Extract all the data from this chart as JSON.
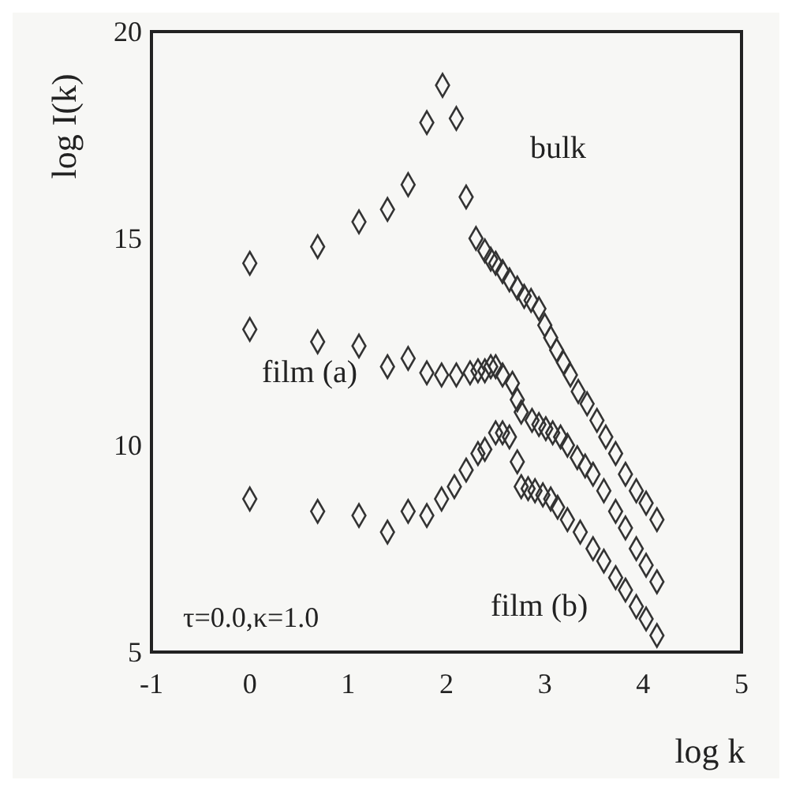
{
  "chart_data": {
    "type": "scatter",
    "xlabel": "log k",
    "ylabel": "log I(k)",
    "xlim": [
      -1,
      5
    ],
    "ylim": [
      5,
      20
    ],
    "xticks": [
      -1,
      0,
      1,
      2,
      3,
      4,
      5
    ],
    "yticks": [
      5,
      10,
      15,
      20
    ],
    "marker": "diamond",
    "grid": false,
    "annotations": [
      "τ=0.0,κ=1.0"
    ],
    "series": [
      {
        "name": "bulk",
        "color": "#333333",
        "x": [
          0,
          0.69,
          1.11,
          1.4,
          1.61,
          1.8,
          1.96,
          2.1,
          2.2,
          2.3,
          2.39,
          2.45,
          2.5,
          2.57,
          2.64,
          2.72,
          2.79,
          2.86,
          2.94,
          3.0,
          3.06,
          3.12,
          3.19,
          3.26,
          3.34,
          3.43,
          3.53,
          3.62,
          3.72,
          3.82,
          3.93,
          4.03,
          4.14
        ],
        "values": [
          14.4,
          14.8,
          15.4,
          15.7,
          16.3,
          17.8,
          18.7,
          17.9,
          16.0,
          15.0,
          14.7,
          14.5,
          14.4,
          14.2,
          14.0,
          13.8,
          13.6,
          13.5,
          13.3,
          12.9,
          12.6,
          12.3,
          12.0,
          11.7,
          11.3,
          11.0,
          10.6,
          10.2,
          9.8,
          9.3,
          8.9,
          8.6,
          8.2
        ]
      },
      {
        "name": "film (a)",
        "color": "#333333",
        "x": [
          0,
          0.69,
          1.11,
          1.4,
          1.61,
          1.8,
          1.95,
          2.1,
          2.24,
          2.32,
          2.39,
          2.45,
          2.5,
          2.57,
          2.67,
          2.72,
          2.76,
          2.87,
          2.94,
          3.01,
          3.08,
          3.16,
          3.23,
          3.33,
          3.41,
          3.49,
          3.6,
          3.72,
          3.82,
          3.93,
          4.03,
          4.14
        ],
        "values": [
          12.8,
          12.5,
          12.4,
          11.9,
          12.1,
          11.75,
          11.7,
          11.7,
          11.75,
          11.8,
          11.8,
          11.9,
          11.9,
          11.7,
          11.5,
          11.1,
          10.8,
          10.6,
          10.5,
          10.4,
          10.3,
          10.2,
          10.0,
          9.7,
          9.5,
          9.3,
          8.9,
          8.4,
          8.0,
          7.5,
          7.1,
          6.7
        ]
      },
      {
        "name": "film (b)",
        "color": "#333333",
        "x": [
          0,
          0.69,
          1.11,
          1.4,
          1.61,
          1.8,
          1.95,
          2.08,
          2.2,
          2.32,
          2.39,
          2.5,
          2.57,
          2.64,
          2.72,
          2.76,
          2.83,
          2.9,
          2.98,
          3.06,
          3.13,
          3.23,
          3.36,
          3.49,
          3.6,
          3.72,
          3.82,
          3.93,
          4.03,
          4.14
        ],
        "values": [
          8.7,
          8.4,
          8.3,
          7.9,
          8.4,
          8.3,
          8.7,
          9.0,
          9.4,
          9.8,
          9.9,
          10.3,
          10.3,
          10.2,
          9.6,
          9.0,
          8.95,
          8.9,
          8.8,
          8.7,
          8.5,
          8.2,
          7.9,
          7.5,
          7.2,
          6.8,
          6.5,
          6.1,
          5.8,
          5.4
        ]
      }
    ]
  }
}
